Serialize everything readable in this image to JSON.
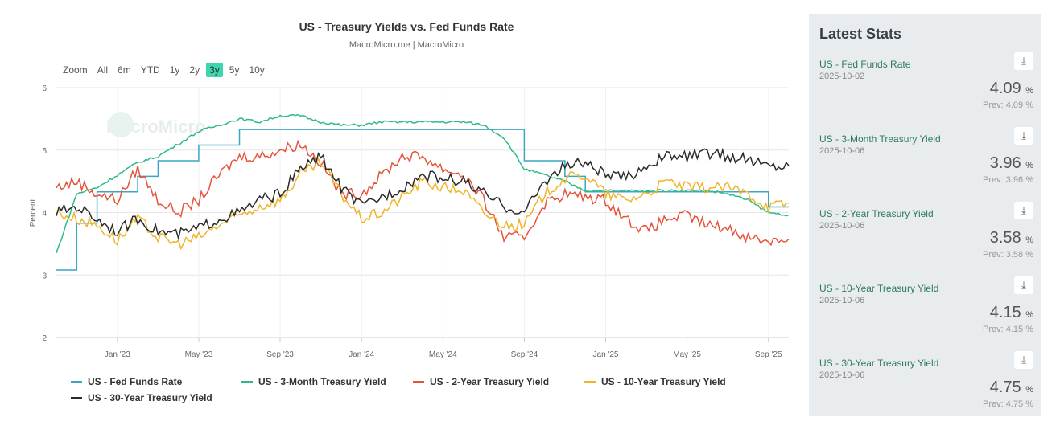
{
  "chart_data": {
    "type": "line",
    "title": "US - Treasury Yields vs. Fed Funds Rate",
    "subtitle": "MacroMicro.me | MacroMicro",
    "ylabel": "Percent",
    "ylim": [
      2,
      6
    ],
    "yticks": [
      "2",
      "3",
      "4",
      "5",
      "6"
    ],
    "xticks": [
      "Jan '23",
      "May '23",
      "Sep '23",
      "Jan '24",
      "May '24",
      "Sep '24",
      "Jan '25",
      "May '25",
      "Sep '25"
    ],
    "x": [
      "2022-10",
      "2022-11",
      "2022-12",
      "2023-01",
      "2023-02",
      "2023-03",
      "2023-04",
      "2023-05",
      "2023-06",
      "2023-07",
      "2023-08",
      "2023-09",
      "2023-10",
      "2023-11",
      "2023-12",
      "2024-01",
      "2024-02",
      "2024-03",
      "2024-04",
      "2024-05",
      "2024-06",
      "2024-07",
      "2024-08",
      "2024-09",
      "2024-10",
      "2024-11",
      "2024-12",
      "2025-01",
      "2025-02",
      "2025-03",
      "2025-04",
      "2025-05",
      "2025-06",
      "2025-07",
      "2025-08",
      "2025-09",
      "2025-10"
    ],
    "series": [
      {
        "name": "US - Fed Funds Rate",
        "color": "#3aa6c4",
        "step": true,
        "values": [
          3.08,
          3.83,
          4.33,
          4.33,
          4.58,
          4.83,
          4.83,
          5.08,
          5.08,
          5.33,
          5.33,
          5.33,
          5.33,
          5.33,
          5.33,
          5.33,
          5.33,
          5.33,
          5.33,
          5.33,
          5.33,
          5.33,
          5.33,
          4.83,
          4.83,
          4.58,
          4.33,
          4.33,
          4.33,
          4.33,
          4.33,
          4.33,
          4.33,
          4.33,
          4.33,
          4.09,
          4.09
        ]
      },
      {
        "name": "US - 3-Month Treasury Yield",
        "color": "#2fb98a",
        "values": [
          3.35,
          4.3,
          4.4,
          4.6,
          4.8,
          4.9,
          5.1,
          5.3,
          5.4,
          5.5,
          5.45,
          5.55,
          5.55,
          5.45,
          5.4,
          5.4,
          5.45,
          5.45,
          5.45,
          5.45,
          5.45,
          5.4,
          5.2,
          4.7,
          4.6,
          4.5,
          4.35,
          4.35,
          4.35,
          4.35,
          4.35,
          4.35,
          4.35,
          4.3,
          4.2,
          4.0,
          3.96
        ]
      },
      {
        "name": "US - 2-Year Treasury Yield",
        "color": "#e5533a",
        "values": [
          4.4,
          4.5,
          4.3,
          4.2,
          4.7,
          4.2,
          4.0,
          4.2,
          4.6,
          4.9,
          4.9,
          5.0,
          5.1,
          4.8,
          4.3,
          4.3,
          4.6,
          4.9,
          4.9,
          4.7,
          4.6,
          4.2,
          3.6,
          3.6,
          4.15,
          4.3,
          4.25,
          4.2,
          3.9,
          3.7,
          3.9,
          3.95,
          3.8,
          3.75,
          3.6,
          3.55,
          3.58
        ]
      },
      {
        "name": "US - 10-Year Treasury Yield",
        "color": "#f0b429",
        "values": [
          4.0,
          3.9,
          3.8,
          3.55,
          3.9,
          3.6,
          3.5,
          3.6,
          3.8,
          3.95,
          4.1,
          4.2,
          4.6,
          4.8,
          4.3,
          3.9,
          4.0,
          4.25,
          4.5,
          4.4,
          4.35,
          4.0,
          3.8,
          3.8,
          4.3,
          4.55,
          4.6,
          4.3,
          4.2,
          4.3,
          4.5,
          4.4,
          4.4,
          4.4,
          4.3,
          4.1,
          4.15
        ]
      },
      {
        "name": "US - 30-Year Treasury Yield",
        "color": "#2b2b2b",
        "values": [
          4.0,
          4.1,
          3.9,
          3.7,
          3.9,
          3.7,
          3.65,
          3.75,
          3.9,
          4.0,
          4.2,
          4.3,
          4.7,
          4.9,
          4.4,
          4.1,
          4.25,
          4.4,
          4.6,
          4.55,
          4.5,
          4.3,
          4.1,
          4.0,
          4.5,
          4.75,
          4.8,
          4.6,
          4.55,
          4.75,
          4.9,
          4.9,
          4.95,
          4.9,
          4.85,
          4.75,
          4.75
        ]
      }
    ],
    "legend": "bottom",
    "grid": true
  },
  "zoom": {
    "label": "Zoom",
    "options": [
      "All",
      "6m",
      "YTD",
      "1y",
      "2y",
      "3y",
      "5y",
      "10y"
    ],
    "selected": "3y"
  },
  "watermark": "MacroMicro",
  "panel": {
    "title": "Latest Stats",
    "stats": [
      {
        "name": "US - Fed Funds Rate",
        "date": "2025-10-02",
        "value": "4.09",
        "unit": "%",
        "prev": "Prev: 4.09 %"
      },
      {
        "name": "US - 3-Month Treasury Yield",
        "date": "2025-10-06",
        "value": "3.96",
        "unit": "%",
        "prev": "Prev: 3.96 %"
      },
      {
        "name": "US - 2-Year Treasury Yield",
        "date": "2025-10-06",
        "value": "3.58",
        "unit": "%",
        "prev": "Prev: 3.58 %"
      },
      {
        "name": "US - 10-Year Treasury Yield",
        "date": "2025-10-06",
        "value": "4.15",
        "unit": "%",
        "prev": "Prev: 4.15 %"
      },
      {
        "name": "US - 30-Year Treasury Yield",
        "date": "2025-10-06",
        "value": "4.75",
        "unit": "%",
        "prev": "Prev: 4.75 %"
      }
    ]
  }
}
